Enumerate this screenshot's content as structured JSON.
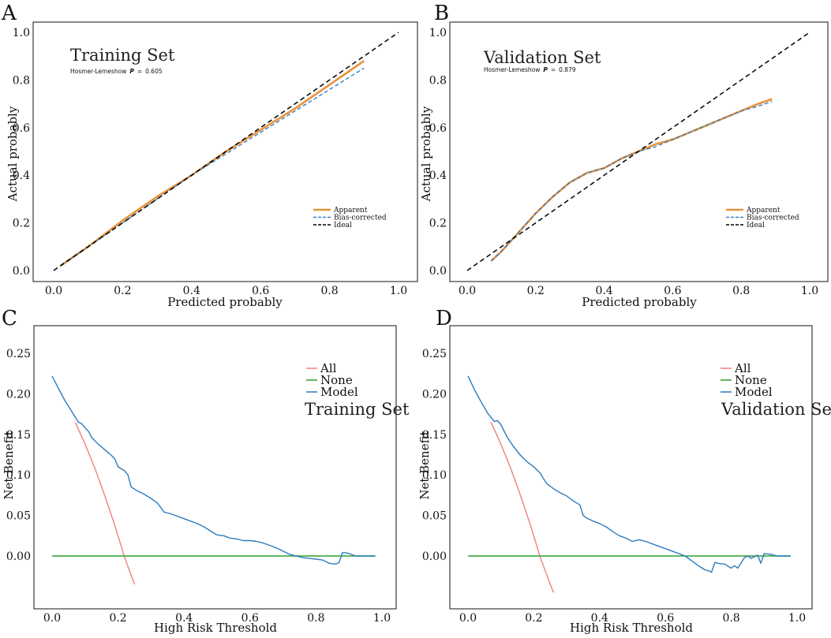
{
  "colors": {
    "apparent": "#e8913a",
    "bias_corrected": "#3a7fc1",
    "ideal": "#000000",
    "all": "#f08080",
    "none": "#2ca02c",
    "model": "#2b7bbf"
  },
  "chart_data": [
    {
      "id": "A",
      "panel_letter": "A",
      "type": "line",
      "title": "Training Set",
      "annotation": {
        "prefix": "Hosmer-Lemeshow",
        "p_label": "P",
        "eq": "=",
        "value": "0.605"
      },
      "xlabel": "Predicted probably",
      "ylabel": "Actual probably",
      "xlim": [
        0,
        1
      ],
      "ylim": [
        0,
        1
      ],
      "xticks": [
        "0.0",
        "0.2",
        "0.4",
        "0.6",
        "0.8",
        "1.0"
      ],
      "yticks": [
        "0.0",
        "0.2",
        "0.4",
        "0.6",
        "0.8",
        "1.0"
      ],
      "grid": false,
      "legend": {
        "position": "bottom-right",
        "entries": [
          "Apparent",
          "Bias-corrected",
          "Ideal"
        ]
      },
      "series": [
        {
          "name": "Apparent",
          "style": "solid",
          "color_key": "apparent",
          "x": [
            0.02,
            0.1,
            0.2,
            0.3,
            0.4,
            0.5,
            0.6,
            0.7,
            0.8,
            0.9
          ],
          "y": [
            0.02,
            0.1,
            0.21,
            0.31,
            0.4,
            0.5,
            0.59,
            0.68,
            0.78,
            0.88
          ]
        },
        {
          "name": "Bias-corrected",
          "style": "dashed",
          "color_key": "bias_corrected",
          "x": [
            0.02,
            0.1,
            0.2,
            0.3,
            0.4,
            0.5,
            0.6,
            0.7,
            0.8,
            0.9
          ],
          "y": [
            0.02,
            0.1,
            0.2,
            0.3,
            0.4,
            0.49,
            0.58,
            0.67,
            0.76,
            0.85
          ]
        },
        {
          "name": "Ideal",
          "style": "dashed",
          "color_key": "ideal",
          "x": [
            0,
            1
          ],
          "y": [
            0,
            1
          ]
        }
      ]
    },
    {
      "id": "B",
      "panel_letter": "B",
      "type": "line",
      "title": "Validation Set",
      "annotation": {
        "prefix": "Hosmer-Lemeshow",
        "p_label": "P",
        "eq": "=",
        "value": "0.879"
      },
      "xlabel": "Predicted probably",
      "ylabel": "Actual probably",
      "xlim": [
        0,
        1
      ],
      "ylim": [
        0,
        1
      ],
      "xticks": [
        "0.0",
        "0.2",
        "0.4",
        "0.6",
        "0.8",
        "1.0"
      ],
      "yticks": [
        "0.0",
        "0.2",
        "0.4",
        "0.6",
        "0.8",
        "1.0"
      ],
      "grid": false,
      "legend": {
        "position": "bottom-right",
        "entries": [
          "Apparent",
          "Bias-corrected",
          "Ideal"
        ]
      },
      "series": [
        {
          "name": "Apparent",
          "style": "solid",
          "color_key": "apparent",
          "x": [
            0.07,
            0.1,
            0.15,
            0.2,
            0.25,
            0.3,
            0.35,
            0.4,
            0.45,
            0.5,
            0.55,
            0.6,
            0.65,
            0.7,
            0.75,
            0.8,
            0.85,
            0.89
          ],
          "y": [
            0.04,
            0.08,
            0.16,
            0.24,
            0.31,
            0.37,
            0.41,
            0.43,
            0.47,
            0.5,
            0.53,
            0.55,
            0.58,
            0.61,
            0.64,
            0.67,
            0.7,
            0.72
          ]
        },
        {
          "name": "Bias-corrected",
          "style": "dashed",
          "color_key": "bias_corrected",
          "x": [
            0.07,
            0.1,
            0.15,
            0.2,
            0.25,
            0.3,
            0.35,
            0.4,
            0.45,
            0.5,
            0.55,
            0.6,
            0.65,
            0.7,
            0.75,
            0.8,
            0.85,
            0.89
          ],
          "y": [
            0.04,
            0.08,
            0.16,
            0.24,
            0.31,
            0.37,
            0.41,
            0.43,
            0.47,
            0.5,
            0.52,
            0.55,
            0.58,
            0.61,
            0.64,
            0.67,
            0.69,
            0.71
          ]
        },
        {
          "name": "Ideal",
          "style": "dashed",
          "color_key": "ideal",
          "x": [
            0,
            1
          ],
          "y": [
            0,
            1
          ]
        }
      ]
    },
    {
      "id": "C",
      "panel_letter": "C",
      "type": "line",
      "title": "Training Set",
      "xlabel": "High Risk Threshold",
      "ylabel": "Net Benefit",
      "xlim": [
        -0.05,
        1.02
      ],
      "ylim": [
        -0.075,
        0.28
      ],
      "xticks": [
        "0.0",
        "0.2",
        "0.4",
        "0.6",
        "0.8",
        "1.0"
      ],
      "yticks": [
        "0.00",
        "0.05",
        "0.10",
        "0.15",
        "0.20",
        "0.25"
      ],
      "grid": false,
      "legend": {
        "position": "top-right",
        "entries": [
          "All",
          "None",
          "Model"
        ]
      },
      "series": [
        {
          "name": "All",
          "style": "solid",
          "color_key": "all",
          "x": [
            0.07,
            0.1,
            0.13,
            0.16,
            0.19,
            0.22,
            0.25
          ],
          "y": [
            0.165,
            0.138,
            0.108,
            0.074,
            0.038,
            -0.002,
            -0.035
          ]
        },
        {
          "name": "None",
          "style": "solid",
          "color_key": "none",
          "x": [
            0.0,
            0.98
          ],
          "y": [
            0.0,
            0.0
          ]
        },
        {
          "name": "Model",
          "style": "solid",
          "color_key": "model",
          "x": [
            0.0,
            0.02,
            0.04,
            0.06,
            0.08,
            0.09,
            0.1,
            0.11,
            0.12,
            0.14,
            0.16,
            0.18,
            0.19,
            0.2,
            0.22,
            0.23,
            0.24,
            0.26,
            0.28,
            0.3,
            0.32,
            0.34,
            0.36,
            0.38,
            0.4,
            0.42,
            0.44,
            0.46,
            0.48,
            0.5,
            0.52,
            0.54,
            0.56,
            0.58,
            0.6,
            0.62,
            0.64,
            0.66,
            0.68,
            0.7,
            0.72,
            0.74,
            0.76,
            0.78,
            0.8,
            0.82,
            0.84,
            0.86,
            0.87,
            0.88,
            0.89,
            0.9,
            0.92,
            0.94,
            0.96,
            0.98
          ],
          "y": [
            0.222,
            0.206,
            0.191,
            0.178,
            0.165,
            0.163,
            0.158,
            0.154,
            0.146,
            0.138,
            0.131,
            0.124,
            0.12,
            0.11,
            0.105,
            0.1,
            0.085,
            0.08,
            0.076,
            0.071,
            0.065,
            0.054,
            0.052,
            0.049,
            0.046,
            0.043,
            0.04,
            0.036,
            0.031,
            0.026,
            0.025,
            0.022,
            0.021,
            0.019,
            0.019,
            0.018,
            0.016,
            0.013,
            0.01,
            0.006,
            0.002,
            0.0,
            -0.002,
            -0.003,
            -0.004,
            -0.005,
            -0.009,
            -0.01,
            -0.008,
            0.004,
            0.004,
            0.003,
            0.0,
            0.0,
            0.0,
            0.0
          ]
        }
      ]
    },
    {
      "id": "D",
      "panel_letter": "D",
      "type": "line",
      "title": "Validation Set",
      "xlabel": "High Risk Threshold",
      "ylabel": "Net Benefit",
      "xlim": [
        -0.05,
        1.02
      ],
      "ylim": [
        -0.075,
        0.28
      ],
      "xticks": [
        "0.0",
        "0.2",
        "0.4",
        "0.6",
        "0.8",
        "1.0"
      ],
      "yticks": [
        "0.00",
        "0.05",
        "0.10",
        "0.15",
        "0.20",
        "0.25"
      ],
      "grid": false,
      "legend": {
        "position": "top-right",
        "entries": [
          "All",
          "None",
          "Model"
        ]
      },
      "series": [
        {
          "name": "All",
          "style": "solid",
          "color_key": "all",
          "x": [
            0.07,
            0.1,
            0.13,
            0.16,
            0.19,
            0.22,
            0.25,
            0.26
          ],
          "y": [
            0.165,
            0.138,
            0.108,
            0.074,
            0.038,
            -0.002,
            -0.035,
            -0.045
          ]
        },
        {
          "name": "None",
          "style": "solid",
          "color_key": "none",
          "x": [
            0.0,
            0.98
          ],
          "y": [
            0.0,
            0.0
          ]
        },
        {
          "name": "Model",
          "style": "solid",
          "color_key": "model",
          "x": [
            0.0,
            0.02,
            0.04,
            0.06,
            0.08,
            0.09,
            0.1,
            0.12,
            0.14,
            0.16,
            0.18,
            0.2,
            0.22,
            0.23,
            0.24,
            0.26,
            0.28,
            0.3,
            0.32,
            0.34,
            0.35,
            0.36,
            0.38,
            0.4,
            0.42,
            0.44,
            0.46,
            0.48,
            0.5,
            0.52,
            0.54,
            0.56,
            0.58,
            0.6,
            0.62,
            0.64,
            0.66,
            0.68,
            0.7,
            0.72,
            0.73,
            0.74,
            0.75,
            0.76,
            0.78,
            0.8,
            0.81,
            0.82,
            0.84,
            0.85,
            0.86,
            0.88,
            0.89,
            0.9,
            0.92,
            0.94,
            0.96,
            0.98
          ],
          "y": [
            0.222,
            0.205,
            0.19,
            0.176,
            0.166,
            0.167,
            0.162,
            0.146,
            0.134,
            0.124,
            0.116,
            0.11,
            0.102,
            0.095,
            0.089,
            0.083,
            0.078,
            0.074,
            0.068,
            0.063,
            0.05,
            0.047,
            0.043,
            0.04,
            0.036,
            0.03,
            0.025,
            0.022,
            0.018,
            0.02,
            0.018,
            0.015,
            0.012,
            0.009,
            0.006,
            0.003,
            0.0,
            -0.006,
            -0.012,
            -0.017,
            -0.018,
            -0.02,
            -0.008,
            -0.009,
            -0.01,
            -0.015,
            -0.012,
            -0.015,
            -0.002,
            0.0,
            -0.003,
            0.001,
            -0.009,
            0.003,
            0.002,
            0.0,
            0.0,
            0.0
          ]
        }
      ]
    }
  ]
}
